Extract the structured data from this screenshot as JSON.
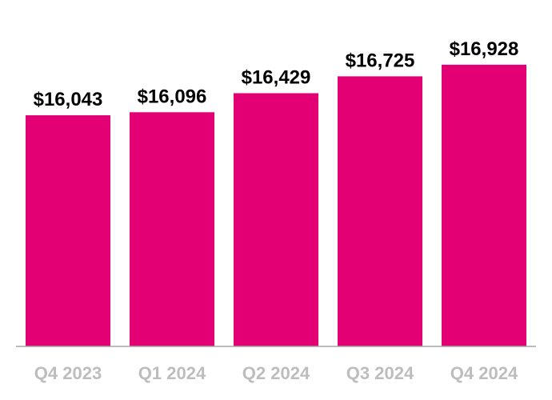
{
  "chart_data": {
    "type": "bar",
    "title": "",
    "xlabel": "",
    "ylabel": "",
    "categories": [
      "Q4 2023",
      "Q1 2024",
      "Q2 2024",
      "Q3 2024",
      "Q4 2024"
    ],
    "values": [
      16043,
      16096,
      16429,
      16725,
      16928
    ],
    "data_labels": [
      "$16,043",
      "$16,096",
      "$16,429",
      "$16,725",
      "$16,928"
    ],
    "ylim": [
      12000,
      17500
    ],
    "grid": false,
    "legend": "none",
    "colors": {
      "bar": "#e20074",
      "axis": "#a6a6a6",
      "tick_label": "#bdbdbd",
      "data_label": "#000000"
    }
  }
}
